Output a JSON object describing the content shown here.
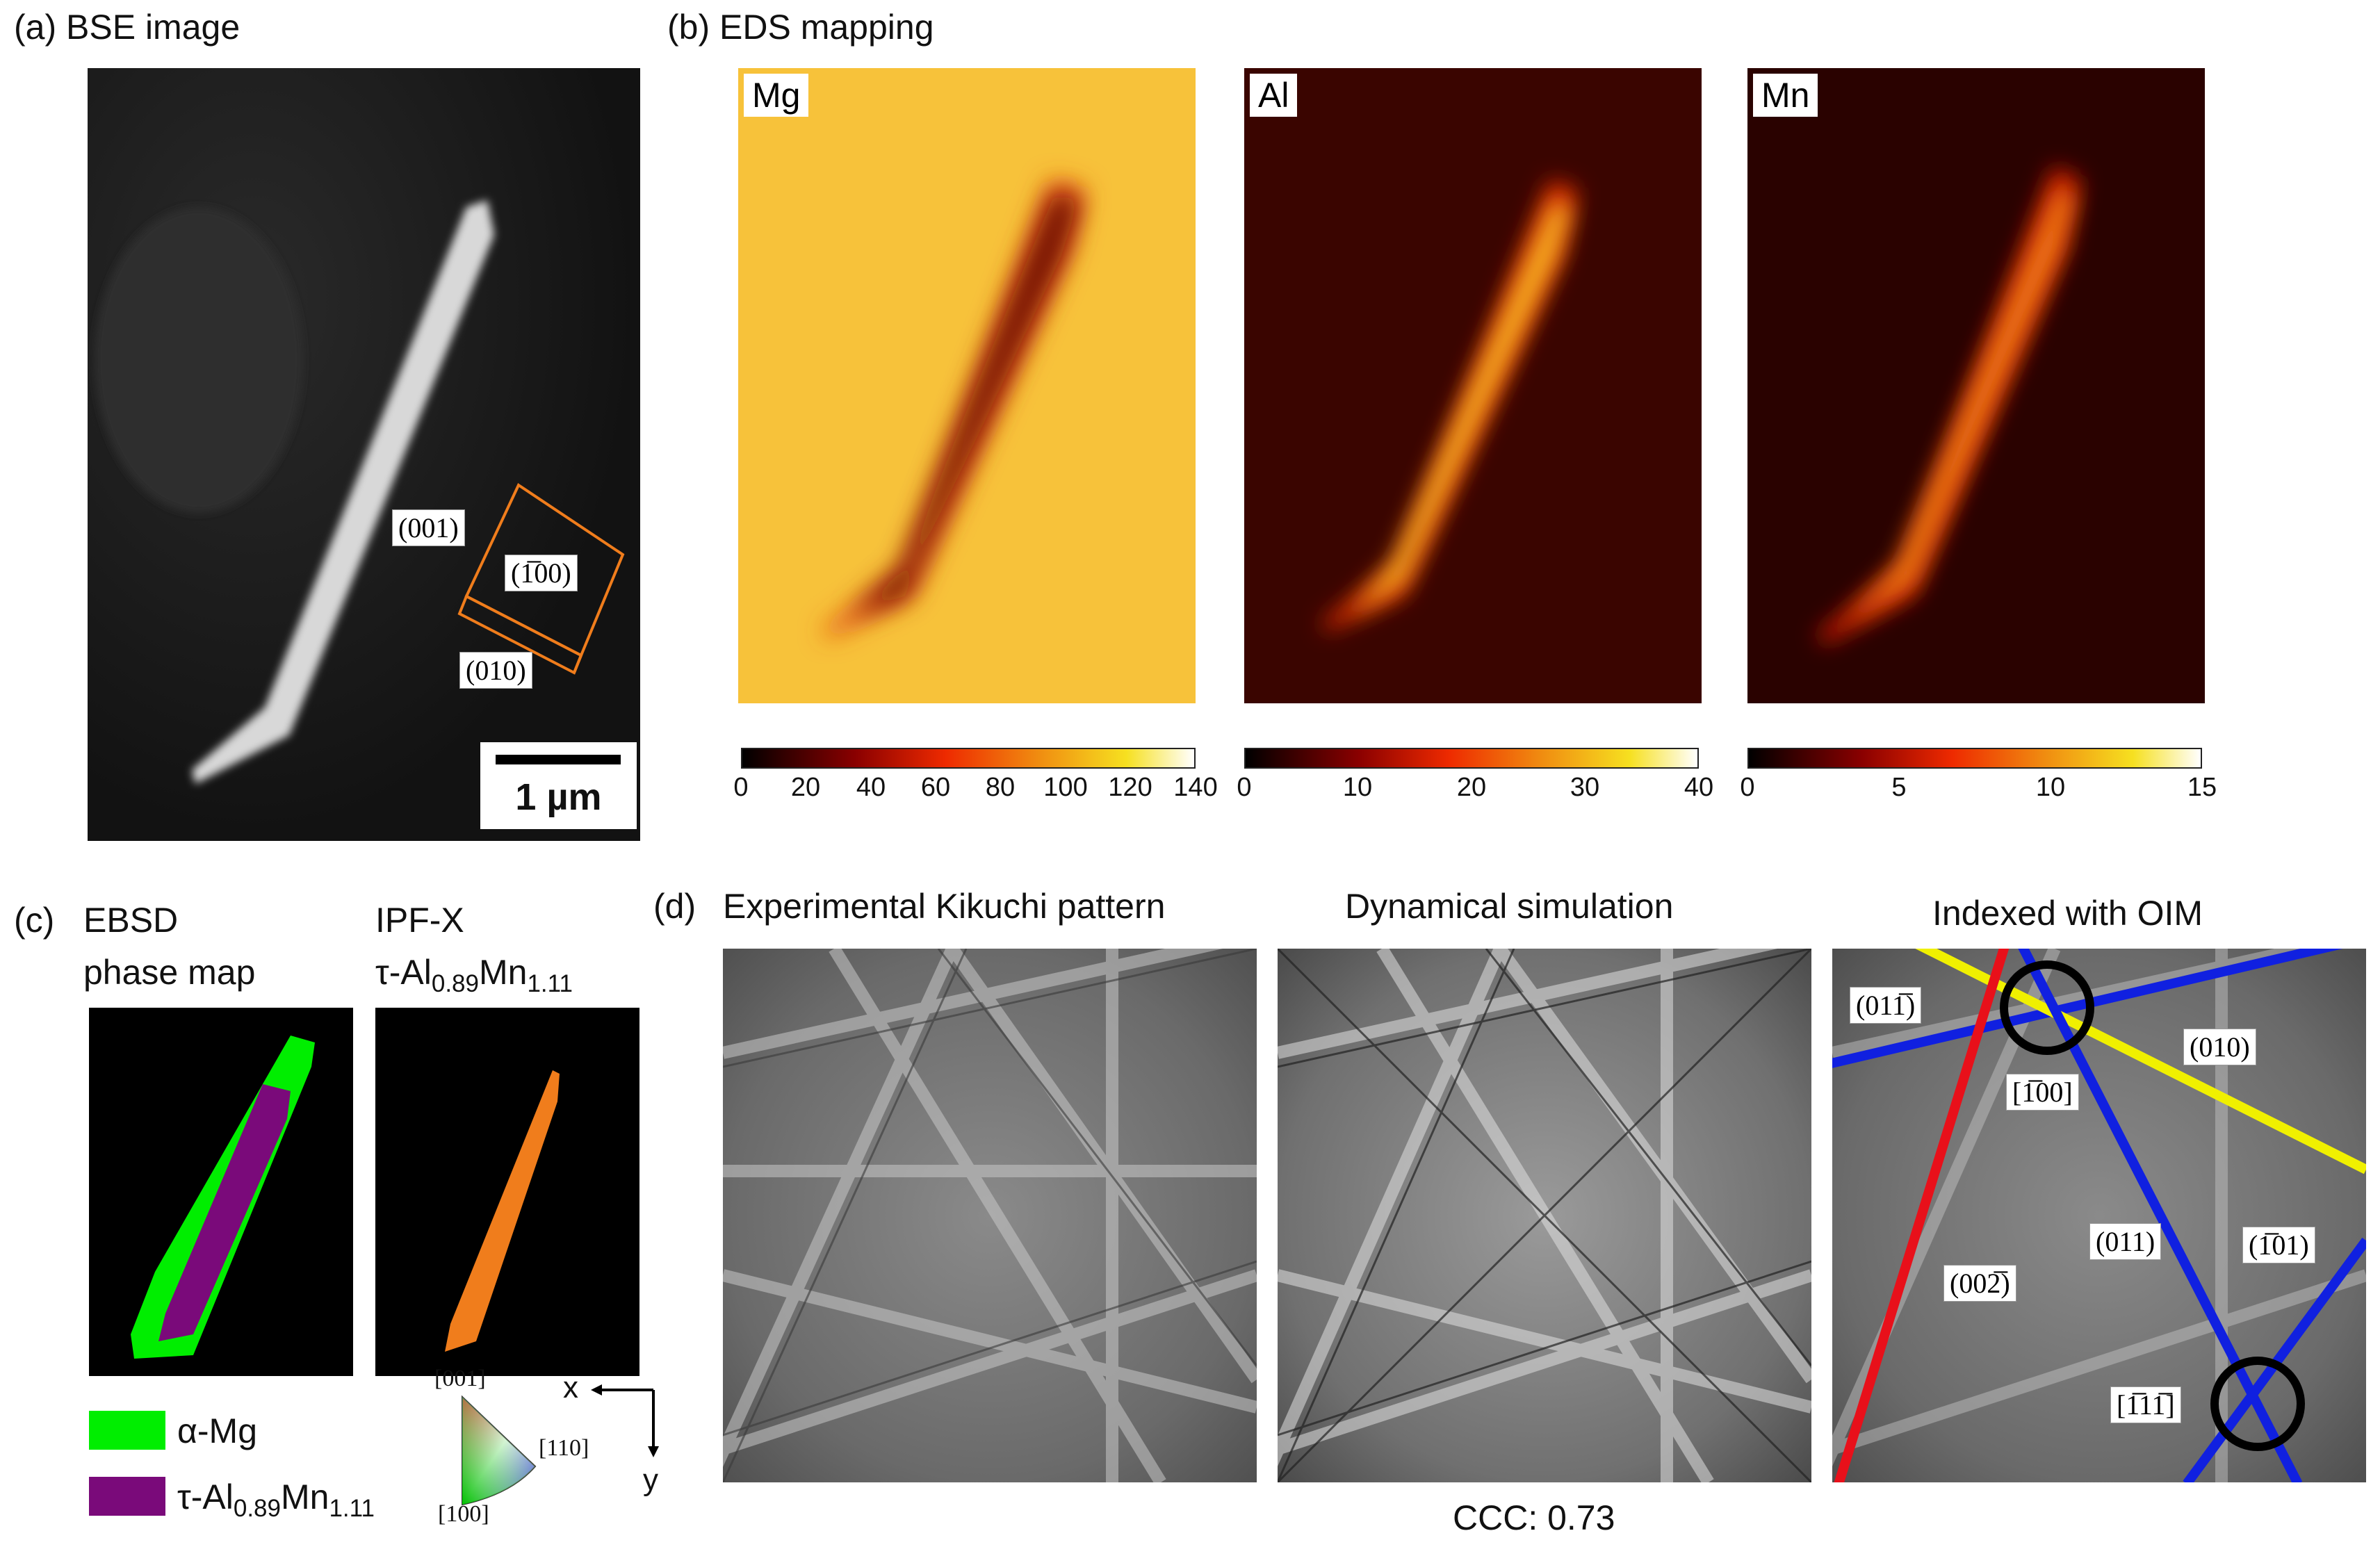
{
  "panels": {
    "a": {
      "title": "(a) BSE image",
      "scalebar": "1 µm",
      "planes": [
        "(001)",
        "(1̅00)",
        "(010)"
      ]
    },
    "b": {
      "title": "(b) EDS mapping",
      "maps": [
        {
          "element": "Mg",
          "ticks": [
            "0",
            "20",
            "40",
            "60",
            "80",
            "100",
            "120",
            "140"
          ]
        },
        {
          "element": "Al",
          "ticks": [
            "0",
            "10",
            "20",
            "30",
            "40"
          ]
        },
        {
          "element": "Mn",
          "ticks": [
            "0",
            "5",
            "10",
            "15"
          ]
        }
      ]
    },
    "c": {
      "title": "(c)",
      "ebsd_line1": "EBSD",
      "ebsd_line2": "phase map",
      "ipf_line1": "IPF-X",
      "ipf_line2_pre": "τ-Al",
      "ipf_line2_sub1": "0.89",
      "ipf_line2_mid": "Mn",
      "ipf_line2_sub2": "1.11",
      "legend": [
        {
          "pre": "α-Mg",
          "color": "#00ee00"
        },
        {
          "pre": "τ-Al",
          "sub1": "0.89",
          "mid": "Mn",
          "sub2": "1.11",
          "color": "#7a0a7a"
        }
      ],
      "ipf_key": {
        "top": "[001]",
        "right": "[110]",
        "bottom": "[100]"
      },
      "axes": {
        "x": "x",
        "y": "y"
      }
    },
    "d": {
      "title": "(d)",
      "sub_titles": [
        "Experimental Kikuchi pattern",
        "Dynamical simulation",
        "Indexed with OIM"
      ],
      "ccc": "CCC: 0.73",
      "indices": [
        "(011̅)",
        "(010)",
        "[1̅00]",
        "(011)",
        "(1̅01)",
        "(002̅)",
        "[1̅11̅]"
      ],
      "line_colors": {
        "red": "#e8101a",
        "blue": "#1020e0",
        "yellow": "#f0f000"
      }
    }
  },
  "colors": {
    "orange": "#f07d1c",
    "green": "#00ee00",
    "purple": "#7a0a7a"
  }
}
